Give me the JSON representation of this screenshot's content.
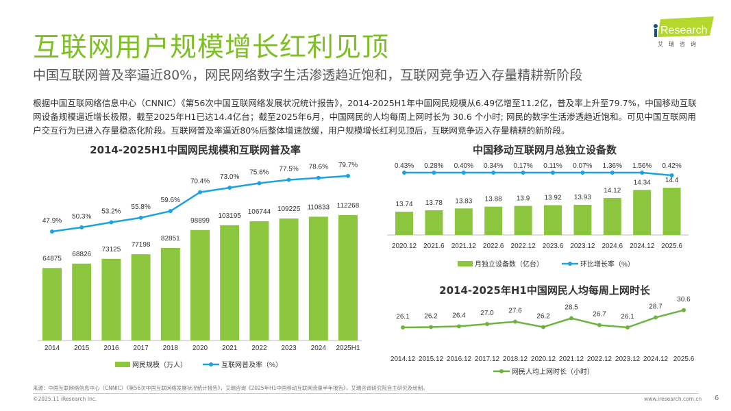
{
  "header": {
    "title": "互联网用户规模增长红利见顶",
    "subtitle": "中国互联网普及率逼近80%，网民网络数字生活渗透趋近饱和，互联网竞争迈入存量精耕新阶段",
    "body": "根据中国互联网络信息中心（CNNIC）《第56次中国互联网络发展状况统计报告》，2014-2025H1年中国网民规模从6.49亿增至11.2亿，普及率上升至79.7%，中国移动互联网设备规模逼近增长极限，截至2025年H1已达14.4亿台；截至2025年6月，中国网民的人均每周上网时长为 30.6 个小时; 网民的数字生活渗透趋近饱和。可见中国互联网用户交互行为已进入存量稳态化阶段。互联网普及率逼近80%后整体增速放缓，用户规模增长红利见顶后，互联网竞争迈入存量精耕的新阶段。",
    "logo": {
      "brand": "iResearch",
      "cn": "艾 瑞 咨 询"
    }
  },
  "colors": {
    "title": "#7fbf26",
    "bar": "#8cc63f",
    "line": "#1aa3e0",
    "line2": "#6db33f"
  },
  "chart_data": [
    {
      "type": "bar+line",
      "title": "2014-2025H1中国网民规模和互联网普及率",
      "categories": [
        "2014",
        "2015",
        "2016",
        "2017",
        "2018",
        "2020",
        "2021",
        "2022",
        "2023",
        "2024",
        "2025H1"
      ],
      "series": [
        {
          "name": "网民规模（万人）",
          "type": "bar",
          "values": [
            64875,
            68826,
            73125,
            77198,
            82851,
            98899,
            103195,
            106744,
            109225,
            110833,
            112268
          ]
        },
        {
          "name": "互联网普及率（%）",
          "type": "line",
          "values": [
            47.9,
            50.3,
            53.2,
            55.8,
            59.6,
            70.4,
            73.0,
            75.6,
            77.5,
            78.6,
            79.7
          ],
          "labels": [
            "47.9%",
            "50.3%",
            "53.2%",
            "55.8%",
            "59.6%",
            "70.4%",
            "73.0%",
            "75.6%",
            "77.5%",
            "78.6%",
            "79.7%"
          ]
        }
      ],
      "legend": "bottom"
    },
    {
      "type": "bar+line",
      "title": "中国移动互联网月总独立设备数",
      "categories": [
        "2020.12",
        "2021.6",
        "2021.12",
        "2022.6",
        "2022.12",
        "2023.6",
        "2023.12",
        "2024.6",
        "2024.12",
        "2025.6"
      ],
      "series": [
        {
          "name": "月独立设备数（亿台）",
          "type": "bar",
          "values": [
            13.74,
            13.78,
            13.83,
            13.88,
            13.9,
            13.92,
            13.93,
            14.12,
            14.34,
            14.4
          ]
        },
        {
          "name": "环比增长率（%）",
          "type": "line",
          "values": [
            0.43,
            0.28,
            0.4,
            0.34,
            0.17,
            0.11,
            0.07,
            1.36,
            1.56,
            0.42
          ],
          "labels": [
            "0.43%",
            "0.28%",
            "0.40%",
            "0.34%",
            "0.17%",
            "0.11%",
            "0.07%",
            "1.36%",
            "1.56%",
            "0.42%"
          ]
        }
      ],
      "legend": "bottom"
    },
    {
      "type": "line",
      "title": "2014-2025年H1中国网民人均每周上网时长",
      "categories": [
        "2014.12",
        "2015.12",
        "2016.12",
        "2017.12",
        "2018.12",
        "2020.12",
        "2021.12",
        "2022.12",
        "2023.12",
        "2024.12",
        "2025.6"
      ],
      "series": [
        {
          "name": "网民人均上网时长（小时）",
          "values": [
            26.1,
            26.2,
            26.4,
            27.0,
            27.6,
            26.2,
            28.5,
            26.7,
            26.1,
            28.7,
            30.6
          ],
          "labels": [
            "26.1",
            "26.2",
            "26.4",
            "27.0",
            "27.6",
            "26.2",
            "28.5",
            "26.7",
            "26.1",
            "28.7",
            "30.6"
          ]
        }
      ],
      "legend": "bottom"
    }
  ],
  "footer": {
    "source": "来源：中国互联网络信息中心（CNNIC）《第56次中国互联网络发展状况统计报告》，艾瑞咨询《2025年H1中国移动互联网流量半年报告》，艾瑞咨询研究院自主研究及绘制。",
    "copyright": "©2025.11 iResearch Inc.",
    "url": "www.iresearch.com.cn",
    "page": "6"
  }
}
